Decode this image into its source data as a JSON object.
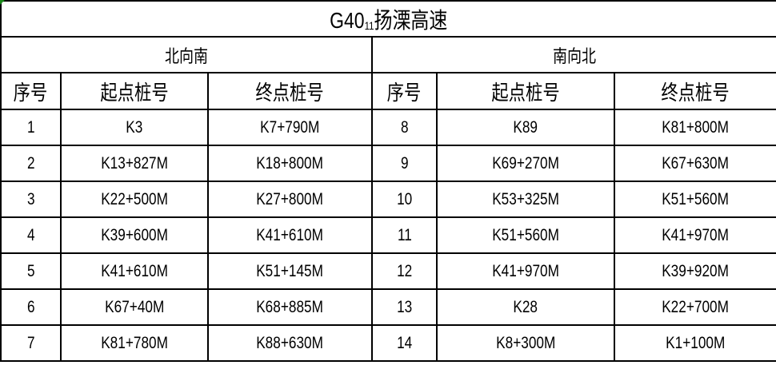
{
  "title": {
    "prefix": "G40",
    "sub": "11",
    "suffix": "扬溧高速"
  },
  "directions": [
    "北向南",
    "南向北"
  ],
  "headers": [
    "序号",
    "起点桩号",
    "终点桩号",
    "序号",
    "起点桩号",
    "终点桩号"
  ],
  "rows": [
    [
      "1",
      "K3",
      "K7+790M",
      "8",
      "K89",
      "K81+800M"
    ],
    [
      "2",
      "K13+827M",
      "K18+800M",
      "9",
      "K69+270M",
      "K67+630M"
    ],
    [
      "3",
      "K22+500M",
      "K27+800M",
      "10",
      "K53+325M",
      "K51+560M"
    ],
    [
      "4",
      "K39+600M",
      "K41+610M",
      "11",
      "K51+560M",
      "K41+970M"
    ],
    [
      "5",
      "K41+610M",
      "K51+145M",
      "12",
      "K41+970M",
      "K39+920M"
    ],
    [
      "6",
      "K67+40M",
      "K68+885M",
      "13",
      "K28",
      "K22+700M"
    ],
    [
      "7",
      "K81+780M",
      "K88+630M",
      "14",
      "K8+300M",
      "K1+100M"
    ]
  ]
}
